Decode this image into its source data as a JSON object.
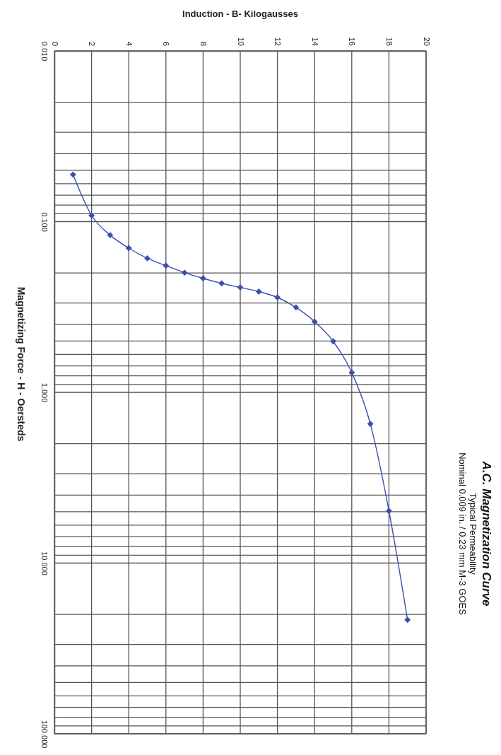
{
  "chart_data": {
    "type": "line",
    "title": "A.C. Magnetization Curve",
    "subtitle": "Typical Permeability\nNominal 0.009 in. / 0.23 mm M-3 GOES",
    "xlabel": "Induction - B- Kilogausses",
    "ylabel": "Magnetizing Force - H - Oersteds",
    "log": "y",
    "grid": true,
    "marker": "diamond",
    "line_style": "solid",
    "xlim": [
      0,
      20
    ],
    "ylim": [
      100,
      0.01
    ],
    "xticks": [
      0,
      2,
      4,
      6,
      8,
      10,
      12,
      14,
      16,
      18,
      20
    ],
    "yticks": [
      {
        "value": 0.01,
        "label": "0.010"
      },
      {
        "value": 0.02,
        "label": null
      },
      {
        "value": 0.03,
        "label": null
      },
      {
        "value": 0.04,
        "label": null
      },
      {
        "value": 0.05,
        "label": null
      },
      {
        "value": 0.06,
        "label": null
      },
      {
        "value": 0.07,
        "label": null
      },
      {
        "value": 0.08,
        "label": null
      },
      {
        "value": 0.09,
        "label": null
      },
      {
        "value": 0.1,
        "label": "0.100"
      },
      {
        "value": 0.2,
        "label": null
      },
      {
        "value": 0.3,
        "label": null
      },
      {
        "value": 0.4,
        "label": null
      },
      {
        "value": 0.5,
        "label": null
      },
      {
        "value": 0.6,
        "label": null
      },
      {
        "value": 0.7,
        "label": null
      },
      {
        "value": 0.8,
        "label": null
      },
      {
        "value": 0.9,
        "label": null
      },
      {
        "value": 1,
        "label": "1.000"
      },
      {
        "value": 2,
        "label": null
      },
      {
        "value": 3,
        "label": null
      },
      {
        "value": 4,
        "label": null
      },
      {
        "value": 5,
        "label": null
      },
      {
        "value": 6,
        "label": null
      },
      {
        "value": 7,
        "label": null
      },
      {
        "value": 8,
        "label": null
      },
      {
        "value": 9,
        "label": null
      },
      {
        "value": 10,
        "label": "10.000"
      },
      {
        "value": 20,
        "label": null
      },
      {
        "value": 30,
        "label": null
      },
      {
        "value": 40,
        "label": null
      },
      {
        "value": 50,
        "label": null
      },
      {
        "value": 60,
        "label": null
      },
      {
        "value": 70,
        "label": null
      },
      {
        "value": 80,
        "label": null
      },
      {
        "value": 90,
        "label": null
      },
      {
        "value": 100,
        "label": "100.000"
      }
    ],
    "series": [
      {
        "color": "#3a4fb0",
        "x": [
          1,
          2,
          3,
          4,
          5,
          6,
          7,
          8,
          9,
          10,
          11,
          12,
          13,
          14,
          15,
          16,
          17,
          18,
          19
        ],
        "values": [
          0.053,
          0.092,
          0.12,
          0.143,
          0.164,
          0.181,
          0.199,
          0.215,
          0.23,
          0.243,
          0.257,
          0.278,
          0.318,
          0.385,
          0.502,
          0.766,
          1.53,
          4.95,
          21.5
        ]
      }
    ]
  }
}
